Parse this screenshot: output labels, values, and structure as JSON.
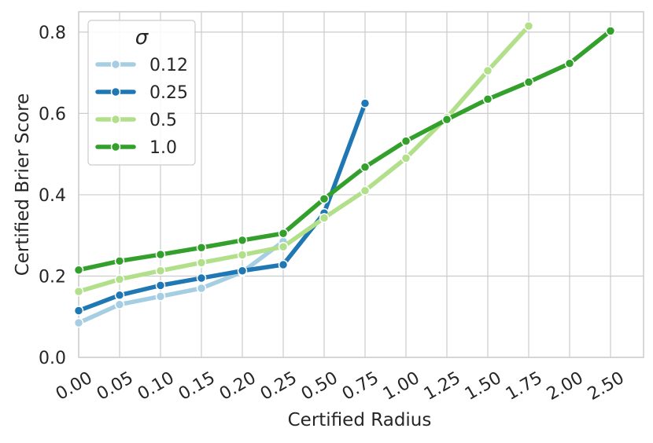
{
  "chart_data": {
    "type": "line",
    "xlabel": "Certified Radius",
    "ylabel": "Certified Brier Score",
    "categories": [
      "0.00",
      "0.05",
      "0.10",
      "0.15",
      "0.20",
      "0.25",
      "0.50",
      "0.75",
      "1.00",
      "1.25",
      "1.50",
      "1.75",
      "2.00",
      "2.50"
    ],
    "ylim": [
      0.0,
      0.85
    ],
    "yticks": [
      "0.0",
      "0.2",
      "0.4",
      "0.6",
      "0.8"
    ],
    "ytick_values": [
      0.0,
      0.2,
      0.4,
      0.6,
      0.8
    ],
    "grid": true,
    "legend": {
      "title": "σ",
      "position": "top-left"
    },
    "series": [
      {
        "name": "0.12",
        "color": "#a6cee3",
        "values": [
          0.085,
          0.13,
          0.15,
          0.17,
          0.21,
          0.285,
          null,
          null,
          null,
          null,
          null,
          null,
          null,
          null
        ]
      },
      {
        "name": "0.25",
        "color": "#1f78b4",
        "values": [
          0.115,
          0.153,
          0.177,
          0.195,
          0.213,
          0.228,
          0.355,
          0.625,
          null,
          null,
          null,
          null,
          null,
          null
        ]
      },
      {
        "name": "0.5",
        "color": "#b2df8a",
        "values": [
          0.162,
          0.192,
          0.213,
          0.233,
          0.252,
          0.272,
          0.343,
          0.41,
          0.49,
          0.59,
          0.705,
          0.815,
          null,
          null
        ]
      },
      {
        "name": "1.0",
        "color": "#33a02c",
        "values": [
          0.215,
          0.237,
          0.253,
          0.27,
          0.288,
          0.305,
          0.39,
          0.468,
          0.532,
          0.585,
          0.635,
          0.677,
          0.723,
          0.803
        ]
      }
    ]
  }
}
